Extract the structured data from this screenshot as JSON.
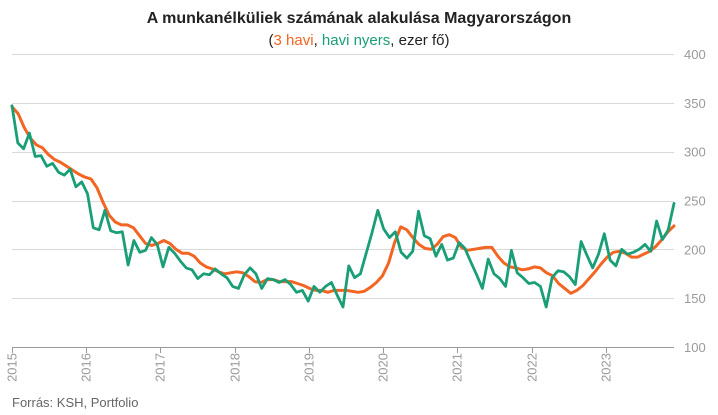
{
  "chart_data": {
    "type": "line",
    "title": "A munkanélküliek számának alakulása Magyarországon",
    "subtitle": {
      "open": "(",
      "part1": "3 havi",
      "sep1": ", ",
      "part2": "havi nyers",
      "rest": ", ezer fő)"
    },
    "source": "Forrás: KSH, Portfolio",
    "ylim": [
      100,
      400
    ],
    "yticks": [
      100,
      150,
      200,
      250,
      300,
      350,
      400
    ],
    "xlim": [
      2015.0,
      2023.92
    ],
    "xticks": [
      "2015",
      "2016",
      "2017",
      "2018",
      "2019",
      "2020",
      "2021",
      "2022",
      "2023"
    ],
    "grid": true,
    "colors": {
      "three_month": "#f26522",
      "monthly_raw": "#1a9e77"
    },
    "series": [
      {
        "name": "3 havi",
        "color": "#f26522",
        "values": [
          346,
          339,
          325,
          314,
          307,
          304,
          297,
          292,
          289,
          285,
          281,
          277,
          274,
          272,
          263,
          248,
          235,
          228,
          225,
          225,
          222,
          214,
          206,
          204,
          206,
          209,
          206,
          200,
          196,
          196,
          193,
          186,
          182,
          180,
          177,
          175,
          176,
          177,
          176,
          172,
          167,
          166,
          169,
          169,
          167,
          167,
          167,
          165,
          163,
          160,
          158,
          158,
          156,
          158,
          158,
          158,
          157,
          156,
          157,
          161,
          166,
          173,
          186,
          207,
          223,
          220,
          212,
          205,
          201,
          200,
          205,
          213,
          215,
          212,
          202,
          199,
          200,
          201,
          202,
          202,
          193,
          186,
          182,
          181,
          179,
          180,
          182,
          181,
          176,
          173,
          165,
          160,
          155,
          158,
          163,
          170,
          177,
          185,
          192,
          197,
          198,
          196,
          192,
          192,
          195,
          198,
          203,
          210,
          218,
          224
        ]
      },
      {
        "name": "havi nyers",
        "color": "#1a9e77",
        "values": [
          347,
          309,
          303,
          319,
          295,
          296,
          285,
          288,
          279,
          276,
          282,
          264,
          269,
          257,
          222,
          220,
          240,
          219,
          217,
          218,
          184,
          209,
          197,
          199,
          212,
          205,
          182,
          202,
          196,
          188,
          181,
          179,
          170,
          175,
          174,
          180,
          175,
          171,
          162,
          160,
          174,
          181,
          175,
          160,
          170,
          169,
          166,
          169,
          164,
          156,
          158,
          147,
          162,
          156,
          162,
          166,
          153,
          141,
          183,
          171,
          175,
          196,
          217,
          240,
          221,
          212,
          218,
          197,
          191,
          198,
          239,
          214,
          211,
          193,
          205,
          189,
          191,
          207,
          201,
          187,
          174,
          160,
          190,
          175,
          170,
          162,
          199,
          176,
          171,
          165,
          166,
          162,
          141,
          171,
          178,
          177,
          172,
          164,
          208,
          194,
          181,
          195,
          216,
          189,
          183,
          200,
          195,
          197,
          200,
          205,
          198,
          229,
          210,
          220,
          247
        ]
      }
    ]
  }
}
